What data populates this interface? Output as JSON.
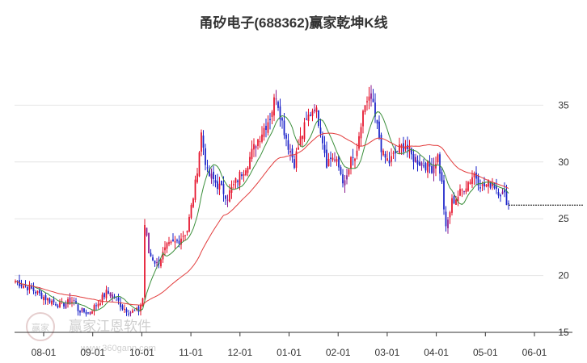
{
  "chart_data": {
    "type": "candlestick",
    "title": "甬矽电子(688362)赢家乾坤K线",
    "xlabel": "",
    "ylabel": "",
    "ylim": [
      15,
      40
    ],
    "x_ticks": [
      "08-01",
      "09-01",
      "10-01",
      "11-01",
      "12-01",
      "01-01",
      "02-01",
      "03-01",
      "04-01",
      "05-01",
      "06-01"
    ],
    "y_ticks": [
      15,
      20,
      25,
      30,
      35
    ],
    "grid": true,
    "legend": "none",
    "last_close": 26.2,
    "close_path": [
      [
        0,
        19.5
      ],
      [
        8,
        18.8
      ],
      [
        15,
        18.0
      ],
      [
        22,
        17.4
      ],
      [
        29,
        17.8
      ],
      [
        31,
        17.0
      ],
      [
        36,
        16.7
      ],
      [
        41,
        17.6
      ],
      [
        45,
        18.5
      ],
      [
        49,
        18.2
      ],
      [
        53,
        17.2
      ],
      [
        57,
        16.8
      ],
      [
        61,
        16.9
      ],
      [
        63,
        18.0
      ],
      [
        64,
        24.5
      ],
      [
        66,
        22.0
      ],
      [
        70,
        21.0
      ],
      [
        75,
        22.5
      ],
      [
        80,
        23.0
      ],
      [
        85,
        24.0
      ],
      [
        89,
        28.0
      ],
      [
        92,
        32.5
      ],
      [
        95,
        29.0
      ],
      [
        100,
        28.0
      ],
      [
        105,
        27.0
      ],
      [
        110,
        28.5
      ],
      [
        115,
        30.0
      ],
      [
        120,
        32.0
      ],
      [
        126,
        34.0
      ],
      [
        129,
        36.0
      ],
      [
        132,
        33.5
      ],
      [
        135,
        31.5
      ],
      [
        138,
        30.0
      ],
      [
        141,
        32.0
      ],
      [
        145,
        34.0
      ],
      [
        148,
        35.0
      ],
      [
        151,
        33.0
      ],
      [
        154,
        30.0
      ],
      [
        157,
        30.5
      ],
      [
        160,
        29.5
      ],
      [
        163,
        28.0
      ],
      [
        166,
        30.0
      ],
      [
        169,
        30.5
      ],
      [
        172,
        34.5
      ],
      [
        176,
        35.5
      ],
      [
        179,
        33.0
      ],
      [
        182,
        30.5
      ],
      [
        185,
        30.0
      ],
      [
        189,
        31.0
      ],
      [
        193,
        31.5
      ],
      [
        196,
        30.5
      ],
      [
        200,
        30.0
      ],
      [
        206,
        29.5
      ],
      [
        209,
        30.5
      ],
      [
        211,
        28.0
      ],
      [
        213,
        24.0
      ],
      [
        216,
        26.5
      ],
      [
        219,
        27.0
      ],
      [
        223,
        28.0
      ],
      [
        227,
        29.0
      ],
      [
        231,
        27.8
      ],
      [
        236,
        28.2
      ],
      [
        239,
        27.5
      ],
      [
        242,
        27.0
      ],
      [
        244,
        26.3
      ]
    ],
    "x_range_days": [
      0,
      320
    ],
    "series": [
      {
        "type": "candlestick",
        "colors": {
          "up": "#e5112a",
          "down": "#1a22c9",
          "neutral": "#8a1a8f"
        }
      },
      {
        "type": "line",
        "color": "#3b8f3b",
        "window": 10
      },
      {
        "type": "line",
        "color": "#e23b3b",
        "window": 40
      }
    ],
    "colors": {
      "grid": "#e4e4e4",
      "axis": "#333333",
      "dash": "#000000"
    }
  },
  "watermark": {
    "text": "赢家江恩软件",
    "url": "www.360gann.com",
    "badge": "赢家"
  }
}
